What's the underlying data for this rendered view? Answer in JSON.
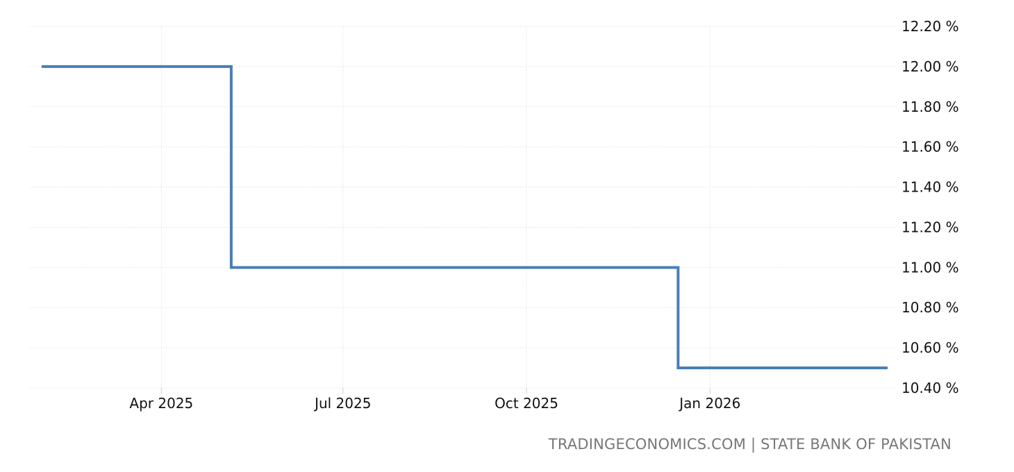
{
  "chart_data": {
    "type": "line",
    "step": true,
    "title": "",
    "xlabel": "",
    "ylabel": "",
    "x_tick_labels": [
      "Apr 2025",
      "Jul 2025",
      "Oct 2025",
      "Jan 2026"
    ],
    "x_tick_dates": [
      "2025-04-01",
      "2025-07-01",
      "2025-10-01",
      "2026-01-01"
    ],
    "xlim": [
      "2025-01-31",
      "2026-03-31"
    ],
    "y_tick_labels": [
      "12.20 %",
      "12.00 %",
      "11.80 %",
      "11.60 %",
      "11.40 %",
      "11.20 %",
      "11.00 %",
      "10.80 %",
      "10.60 %",
      "10.40 %"
    ],
    "y_tick_values": [
      12.2,
      12.0,
      11.8,
      11.6,
      11.4,
      11.2,
      11.0,
      10.8,
      10.6,
      10.4
    ],
    "ylim": [
      10.4,
      12.2
    ],
    "y_axis_position": "right",
    "grid": true,
    "series": [
      {
        "x": [
          "2025-01-31",
          "2025-05-06",
          "2025-12-16",
          "2026-03-31"
        ],
        "values": [
          12.0,
          11.0,
          10.5,
          10.5
        ],
        "color": "#4a7eb5"
      }
    ]
  },
  "source_text": "TRADINGECONOMICS.COM | STATE BANK OF PAKISTAN",
  "colors": {
    "line": "#4a7eb5",
    "grid": "#d9d9d9",
    "text": "#111111",
    "source": "#777777"
  }
}
